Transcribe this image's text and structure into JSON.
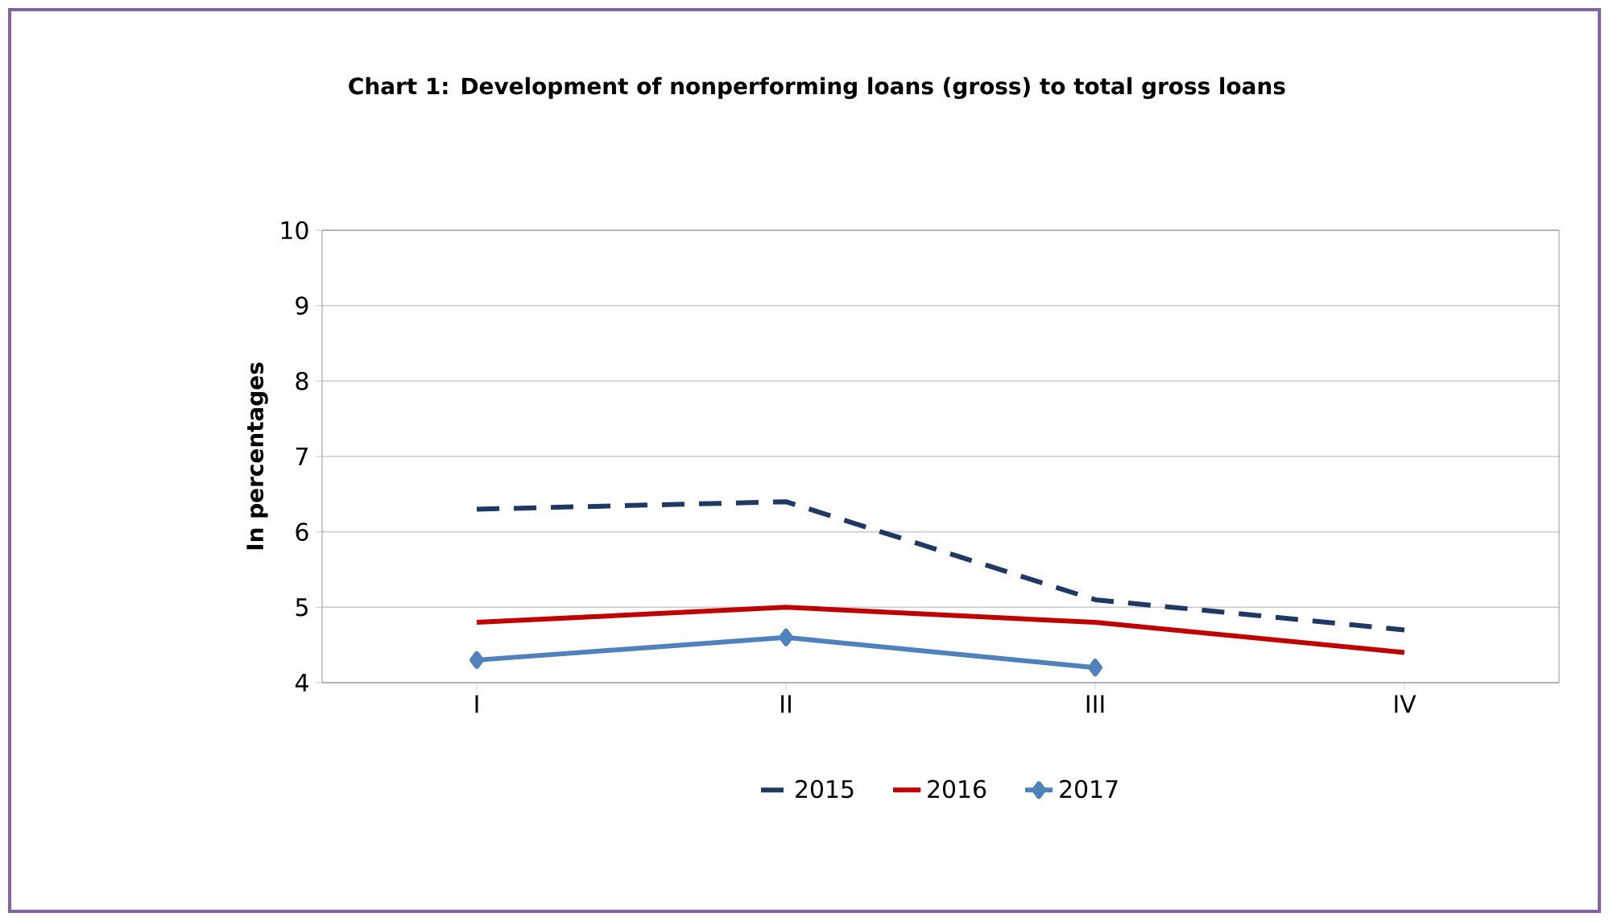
{
  "chart_data": {
    "type": "line",
    "title": "Chart 1: Development of nonperforming loans (gross) to total gross loans",
    "ylabel": "In percentages",
    "categories": [
      "I",
      "II",
      "III",
      "IV"
    ],
    "series": [
      {
        "name": "2015",
        "color": "#1f3864",
        "values": [
          6.3,
          6.4,
          5.1,
          4.7
        ],
        "line_style": "dashed",
        "marker": "none"
      },
      {
        "name": "2016",
        "color": "#c00000",
        "values": [
          4.8,
          5.0,
          4.8,
          4.4
        ],
        "line_style": "solid",
        "marker": "none"
      },
      {
        "name": "2017",
        "color": "#4f81bd",
        "values": [
          4.3,
          4.6,
          4.2,
          null
        ],
        "line_style": "solid",
        "marker": "diamond"
      }
    ],
    "ylim": [
      4,
      10
    ],
    "yticks": [
      4,
      5,
      6,
      7,
      8,
      9,
      10
    ],
    "grid": "y",
    "legend": "bottom"
  }
}
